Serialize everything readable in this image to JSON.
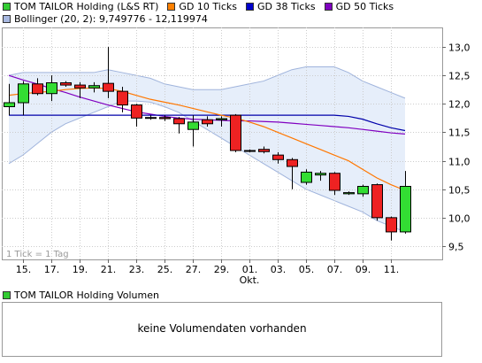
{
  "legend_top": [
    {
      "label": "TOM TAILOR Holding (L&S RT)",
      "color": "#33cc33"
    },
    {
      "label": "GD 10 Ticks",
      "color": "#ff8000"
    },
    {
      "label": "GD 38 Ticks",
      "color": "#0000cc"
    },
    {
      "label": "GD 50 Ticks",
      "color": "#7f00bf"
    }
  ],
  "bollinger_label": "Bollinger (20, 2): 9,749776 - 12,119974",
  "bollinger_color": "#a8b8e0",
  "tick_note": "1 Tick = 1 Tag",
  "volume_legend": {
    "label": "TOM TAILOR Holding Volumen",
    "color": "#33cc33"
  },
  "volume_message": "keine Volumendaten vorhanden",
  "colors": {
    "up": "#33dd33",
    "down": "#ee2222",
    "bollinger_fill": "#e6eefa",
    "bollinger_line": "#a0b4dc",
    "gd10": "#ff7700",
    "gd38": "#0000aa",
    "gd50": "#8000c0",
    "grid": "#cccccc"
  },
  "chart_data": {
    "type": "candlestick",
    "y_ticks": [
      "9,5",
      "10,0",
      "10,5",
      "11,0",
      "11,5",
      "12,0",
      "12,5",
      "13,0"
    ],
    "ylim": [
      9.5,
      13.0
    ],
    "x_tick_labels": [
      {
        "index": 1,
        "label": "15."
      },
      {
        "index": 3,
        "label": "17."
      },
      {
        "index": 5,
        "label": "19."
      },
      {
        "index": 7,
        "label": "21."
      },
      {
        "index": 9,
        "label": "23."
      },
      {
        "index": 11,
        "label": "25."
      },
      {
        "index": 13,
        "label": "27."
      },
      {
        "index": 15,
        "label": "29."
      },
      {
        "index": 17,
        "label": "01."
      },
      {
        "index": 19,
        "label": "03."
      },
      {
        "index": 21,
        "label": "05."
      },
      {
        "index": 23,
        "label": "07."
      },
      {
        "index": 25,
        "label": "09."
      },
      {
        "index": 27,
        "label": "11."
      }
    ],
    "x_month_label": {
      "index": 17,
      "label": "Okt."
    },
    "candles": [
      {
        "o": 11.95,
        "h": 12.35,
        "l": 11.8,
        "c": 12.02
      },
      {
        "o": 12.02,
        "h": 12.4,
        "l": 11.8,
        "c": 12.35
      },
      {
        "o": 12.35,
        "h": 12.45,
        "l": 12.15,
        "c": 12.18
      },
      {
        "o": 12.18,
        "h": 12.5,
        "l": 12.05,
        "c": 12.37
      },
      {
        "o": 12.37,
        "h": 12.4,
        "l": 12.3,
        "c": 12.33
      },
      {
        "o": 12.33,
        "h": 12.38,
        "l": 12.1,
        "c": 12.28
      },
      {
        "o": 12.28,
        "h": 12.38,
        "l": 12.2,
        "c": 12.32
      },
      {
        "o": 12.36,
        "h": 13.0,
        "l": 12.1,
        "c": 12.22
      },
      {
        "o": 12.22,
        "h": 12.3,
        "l": 11.85,
        "c": 11.98
      },
      {
        "o": 11.98,
        "h": 12.0,
        "l": 11.6,
        "c": 11.75
      },
      {
        "o": 11.75,
        "h": 11.8,
        "l": 11.72,
        "c": 11.76
      },
      {
        "o": 11.76,
        "h": 11.8,
        "l": 11.7,
        "c": 11.74
      },
      {
        "o": 11.74,
        "h": 11.77,
        "l": 11.48,
        "c": 11.65
      },
      {
        "o": 11.55,
        "h": 11.8,
        "l": 11.25,
        "c": 11.68
      },
      {
        "o": 11.72,
        "h": 11.78,
        "l": 11.6,
        "c": 11.65
      },
      {
        "o": 11.72,
        "h": 11.78,
        "l": 11.6,
        "c": 11.74
      },
      {
        "o": 11.8,
        "h": 11.82,
        "l": 11.15,
        "c": 11.18
      },
      {
        "o": 11.18,
        "h": 11.2,
        "l": 11.15,
        "c": 11.17
      },
      {
        "o": 11.2,
        "h": 11.25,
        "l": 11.13,
        "c": 11.16
      },
      {
        "o": 11.1,
        "h": 11.15,
        "l": 10.95,
        "c": 11.02
      },
      {
        "o": 11.02,
        "h": 11.05,
        "l": 10.5,
        "c": 10.9
      },
      {
        "o": 10.62,
        "h": 10.85,
        "l": 10.58,
        "c": 10.8
      },
      {
        "o": 10.75,
        "h": 10.82,
        "l": 10.65,
        "c": 10.78
      },
      {
        "o": 10.78,
        "h": 10.8,
        "l": 10.4,
        "c": 10.48
      },
      {
        "o": 10.42,
        "h": 10.46,
        "l": 10.4,
        "c": 10.44
      },
      {
        "o": 10.42,
        "h": 10.58,
        "l": 10.37,
        "c": 10.55
      },
      {
        "o": 10.58,
        "h": 10.6,
        "l": 9.95,
        "c": 10.0
      },
      {
        "o": 10.0,
        "h": 10.02,
        "l": 9.6,
        "c": 9.75
      },
      {
        "o": 9.75,
        "h": 10.82,
        "l": 9.72,
        "c": 10.55
      }
    ],
    "gd10": [
      12.15,
      12.18,
      12.2,
      12.22,
      12.25,
      12.27,
      12.28,
      12.27,
      12.22,
      12.15,
      12.08,
      12.03,
      11.98,
      11.92,
      11.86,
      11.8,
      11.75,
      11.68,
      11.6,
      11.5,
      11.4,
      11.3,
      11.2,
      11.1,
      11.0,
      10.85,
      10.7,
      10.58,
      10.48
    ],
    "gd38": [
      11.8,
      11.8,
      11.8,
      11.8,
      11.8,
      11.8,
      11.8,
      11.8,
      11.8,
      11.8,
      11.8,
      11.8,
      11.8,
      11.8,
      11.8,
      11.8,
      11.8,
      11.8,
      11.8,
      11.8,
      11.8,
      11.8,
      11.8,
      11.8,
      11.78,
      11.73,
      11.65,
      11.58,
      11.53
    ],
    "gd50": [
      12.5,
      12.42,
      12.35,
      12.27,
      12.2,
      12.12,
      12.05,
      11.98,
      11.92,
      11.86,
      11.82,
      11.78,
      11.75,
      11.73,
      11.72,
      11.71,
      11.7,
      11.7,
      11.69,
      11.68,
      11.66,
      11.64,
      11.62,
      11.6,
      11.58,
      11.55,
      11.52,
      11.49,
      11.47
    ],
    "bollinger_upper": [
      12.5,
      12.55,
      12.55,
      12.55,
      12.55,
      12.55,
      12.55,
      12.6,
      12.55,
      12.5,
      12.45,
      12.35,
      12.3,
      12.25,
      12.25,
      12.25,
      12.3,
      12.35,
      12.4,
      12.5,
      12.6,
      12.65,
      12.65,
      12.65,
      12.55,
      12.4,
      12.3,
      12.2,
      12.1
    ],
    "bollinger_lower": [
      10.95,
      11.1,
      11.3,
      11.5,
      11.65,
      11.75,
      11.85,
      11.95,
      12.05,
      12.05,
      12.03,
      11.95,
      11.85,
      11.7,
      11.55,
      11.4,
      11.25,
      11.1,
      10.95,
      10.8,
      10.65,
      10.5,
      10.4,
      10.3,
      10.2,
      10.1,
      9.95,
      9.85,
      9.75
    ]
  }
}
